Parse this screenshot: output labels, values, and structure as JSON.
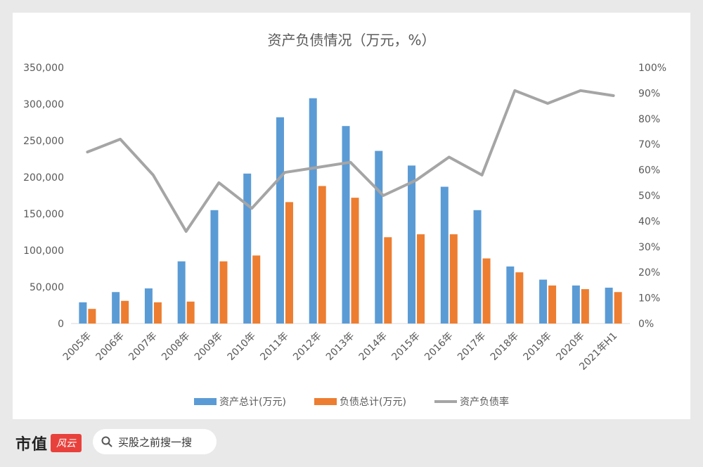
{
  "chart_data": {
    "type": "bar+line",
    "title": "资产负债情况（万元，%）",
    "categories": [
      "2005年",
      "2006年",
      "2007年",
      "2008年",
      "2009年",
      "2010年",
      "2011年",
      "2012年",
      "2013年",
      "2014年",
      "2015年",
      "2016年",
      "2017年",
      "2018年",
      "2019年",
      "2020年",
      "2021年H1"
    ],
    "series": [
      {
        "name": "资产总计(万元)",
        "type": "bar",
        "axis": "left",
        "color": "#5b9bd5",
        "values": [
          29000,
          43000,
          48000,
          85000,
          155000,
          205000,
          282000,
          308000,
          270000,
          236000,
          216000,
          187000,
          155000,
          78000,
          60000,
          52000,
          49000
        ]
      },
      {
        "name": "负债总计(万元)",
        "type": "bar",
        "axis": "left",
        "color": "#ed7d31",
        "values": [
          20000,
          31000,
          29000,
          30000,
          85000,
          93000,
          166000,
          188000,
          172000,
          118000,
          122000,
          122000,
          89000,
          70000,
          52000,
          47000,
          43000
        ]
      },
      {
        "name": "资产负债率",
        "type": "line",
        "axis": "right",
        "color": "#a5a5a5",
        "values": [
          67,
          72,
          58,
          36,
          55,
          45,
          59,
          61,
          63,
          50,
          56,
          65,
          58,
          91,
          86,
          91,
          89
        ]
      }
    ],
    "left_axis": {
      "min": 0,
      "max": 350000,
      "ticks": [
        "0",
        "50,000",
        "100,000",
        "150,000",
        "200,000",
        "250,000",
        "300,000",
        "350,000"
      ]
    },
    "right_axis": {
      "min": 0,
      "max": 100,
      "ticks": [
        "0%",
        "10%",
        "20%",
        "30%",
        "40%",
        "50%",
        "60%",
        "70%",
        "80%",
        "90%",
        "100%"
      ]
    },
    "legend_position": "bottom"
  },
  "footer": {
    "brand": "市值",
    "brand_logo": "风云",
    "search_placeholder": "买股之前搜一搜"
  }
}
